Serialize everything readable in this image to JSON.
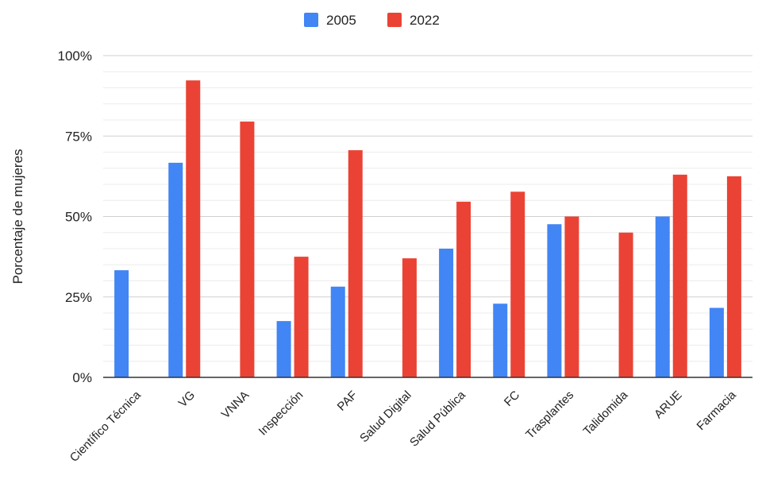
{
  "chart_data": {
    "type": "bar",
    "title": "",
    "xlabel": "",
    "ylabel": "Porcentaje de mujeres",
    "ylim": [
      0,
      100
    ],
    "yticks": [
      "0%",
      "25%",
      "50%",
      "75%",
      "100%"
    ],
    "grid": true,
    "legend_position": "top-center",
    "categories": [
      "Científico Técnica",
      "VG",
      "VNNA",
      "Inspección",
      "PAF",
      "Salud Digital",
      "Salud Pública",
      "FC",
      "Trasplantes",
      "Talidomida",
      "ARUE",
      "Farmacia"
    ],
    "series": [
      {
        "name": "2005",
        "color": "#4285F4",
        "values": [
          33.3,
          66.7,
          null,
          17.5,
          28.2,
          null,
          40.0,
          22.9,
          47.6,
          null,
          50.0,
          21.6
        ]
      },
      {
        "name": "2022",
        "color": "#EA4335",
        "values": [
          null,
          92.3,
          79.5,
          37.5,
          70.6,
          37.0,
          54.6,
          57.7,
          50.0,
          45.0,
          63.0,
          62.5
        ]
      }
    ]
  }
}
